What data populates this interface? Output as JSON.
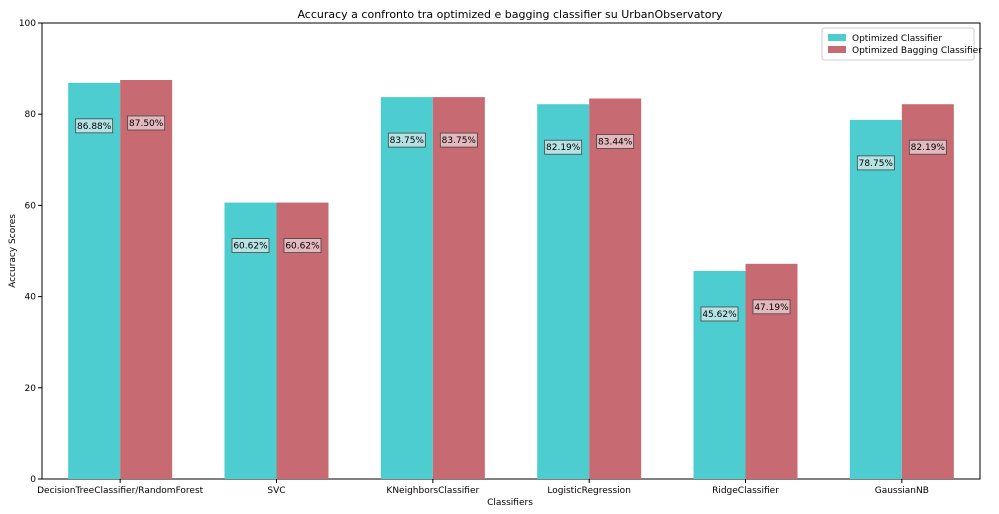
{
  "chart_data": {
    "type": "bar",
    "title": "Accuracy a confronto tra optimized e bagging classifier su UrbanObservatory",
    "xlabel": "Classifiers",
    "ylabel": "Accuracy Scores",
    "ylim": [
      0,
      100
    ],
    "yticks": [
      0,
      20,
      40,
      60,
      80,
      100
    ],
    "grid": false,
    "legend_position": "top-right",
    "categories": [
      "DecisionTreeClassifier/RandomForest",
      "SVC",
      "KNeighborsClassifier",
      "LogisticRegression",
      "RidgeClassifier",
      "GaussianNB"
    ],
    "series": [
      {
        "name": "Optimized Classifier",
        "color": "#4ecdd0",
        "values": [
          86.88,
          60.62,
          83.75,
          82.19,
          45.62,
          78.75
        ],
        "labels": [
          "86.88%",
          "60.62%",
          "83.75%",
          "82.19%",
          "45.62%",
          "78.75%"
        ]
      },
      {
        "name": "Optimized Bagging Classifier",
        "color": "#c76a72",
        "values": [
          87.5,
          60.62,
          83.75,
          83.44,
          47.19,
          82.19
        ],
        "labels": [
          "87.50%",
          "60.62%",
          "83.75%",
          "83.44%",
          "47.19%",
          "82.19%"
        ]
      }
    ]
  }
}
